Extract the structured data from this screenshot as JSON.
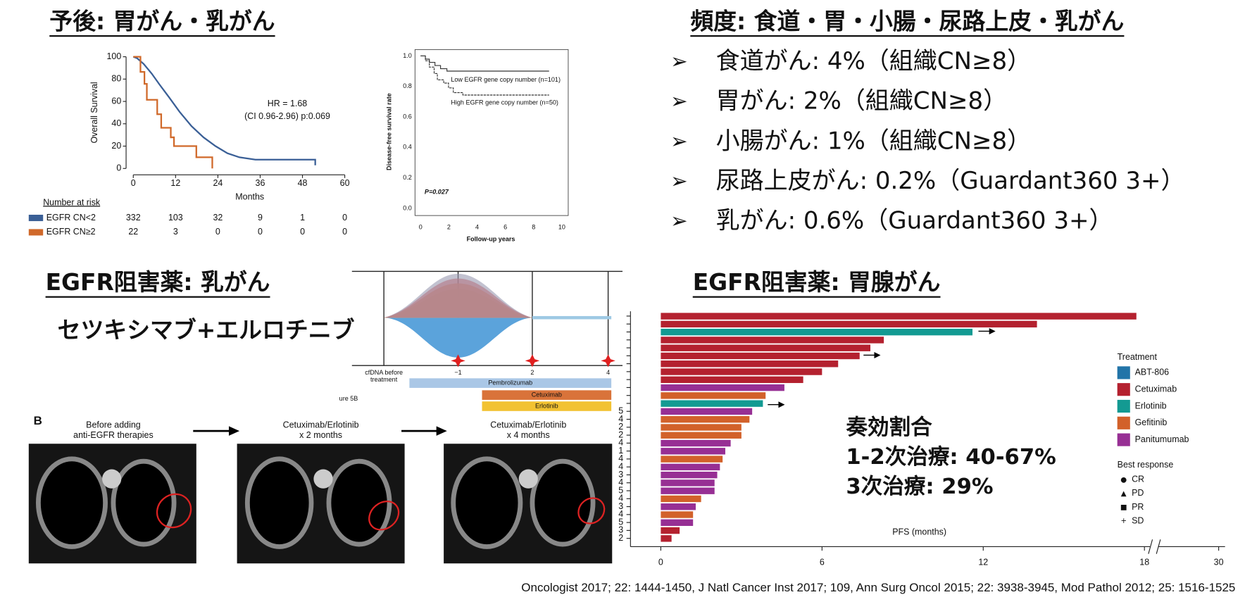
{
  "prognosis": {
    "title": "予後: 胃がん・乳がん",
    "km1": {
      "ylabel": "Overall Survival",
      "xlabel": "Months",
      "yticks": [
        0,
        20,
        40,
        60,
        80,
        100
      ],
      "xticks": [
        0,
        12,
        24,
        36,
        48,
        60
      ],
      "hr": "HR = 1.68",
      "ci": "(CI 0.96-2.96) p:0.069",
      "risk_title": "Number at risk",
      "risk_rows": [
        {
          "label": "EGFR CN<2",
          "color": "#3a5f96",
          "counts": [
            332,
            103,
            32,
            9,
            1,
            0
          ]
        },
        {
          "label": "EGFR CN≥2",
          "color": "#d0692a",
          "counts": [
            22,
            3,
            0,
            0,
            0,
            0
          ]
        }
      ]
    },
    "km2": {
      "ylabel": "Disease-free survival rate",
      "xlabel": "Follow-up years",
      "yticks": [
        "0.0",
        "0.2",
        "0.4",
        "0.6",
        "0.8",
        "1.0"
      ],
      "xticks": [
        0,
        2,
        4,
        6,
        8,
        10
      ],
      "low": "Low EGFR gene copy number (n=101)",
      "high": "High EGFR gene copy number (n=50)",
      "p": "P=0.027"
    }
  },
  "frequency": {
    "title": "頻度: 食道・胃・小腸・尿路上皮・乳がん",
    "items": [
      "食道がん: 4%（組織CN≥8）",
      "胃がん: 2%（組織CN≥8）",
      "小腸がん: 1%（組織CN≥8）",
      "尿路上皮がん: 0.2%（Guardant360 3+）",
      "乳がん: 0.6%（Guardant360 3+）"
    ]
  },
  "breast": {
    "title": "EGFR阻害薬: 乳がん",
    "regimen": "セツキシマブ+エルロチニブ",
    "timeline": {
      "start": [
        "cfDNA before",
        "treatment"
      ],
      "points": [
        "−1",
        "2",
        "4"
      ],
      "drugs": [
        "Pembrolizumab",
        "Cetuximab",
        "Erlotinib"
      ],
      "fig": "ure 5B"
    },
    "panel": "B",
    "images": [
      [
        "Before adding",
        "anti-EGFR therapies"
      ],
      [
        "Cetuximab/Erlotinib",
        "x 2 months"
      ],
      [
        "Cetuximab/Erlotinib",
        "x 4 months"
      ]
    ]
  },
  "gastric": {
    "title": "EGFR阻害薬: 胃腺がん",
    "response": [
      "奏効割合",
      "1-2次治療: 40-67%",
      "3次治療: 29%"
    ],
    "waterfall": {
      "xlabel": "PFS (months)",
      "xticks": [
        0,
        6,
        12,
        18,
        30
      ],
      "legend_title": "Treatment",
      "treatments": [
        {
          "name": "ABT-806",
          "color": "#2274a8"
        },
        {
          "name": "Cetuximab",
          "color": "#b4212f"
        },
        {
          "name": "Erlotinib",
          "color": "#139a92"
        },
        {
          "name": "Gefitinib",
          "color": "#d2612a"
        },
        {
          "name": "Panitumumab",
          "color": "#972f94"
        }
      ],
      "response_title": "Best response",
      "responses": [
        "CR",
        "PD",
        "PR",
        "SD"
      ],
      "bars": [
        {
          "value": 17.7,
          "treatment": "Cetuximab"
        },
        {
          "value": 14.0,
          "treatment": "Cetuximab"
        },
        {
          "value": 11.6,
          "treatment": "Erlotinib"
        },
        {
          "value": 8.3,
          "treatment": "Cetuximab"
        },
        {
          "value": 7.8,
          "treatment": "Cetuximab"
        },
        {
          "value": 7.4,
          "treatment": "Cetuximab"
        },
        {
          "value": 6.6,
          "treatment": "Cetuximab"
        },
        {
          "value": 6.0,
          "treatment": "Cetuximab"
        },
        {
          "value": 5.3,
          "treatment": "Cetuximab"
        },
        {
          "value": 4.6,
          "treatment": "Panitumumab"
        },
        {
          "value": 3.9,
          "treatment": "Gefitinib"
        },
        {
          "value": 3.8,
          "treatment": "Erlotinib"
        },
        {
          "value": 3.4,
          "treatment": "Panitumumab"
        },
        {
          "value": 3.3,
          "treatment": "Gefitinib"
        },
        {
          "value": 3.0,
          "treatment": "Gefitinib"
        },
        {
          "value": 3.0,
          "treatment": "Gefitinib"
        },
        {
          "value": 2.6,
          "treatment": "Panitumumab"
        },
        {
          "value": 2.4,
          "treatment": "Panitumumab"
        },
        {
          "value": 2.3,
          "treatment": "Gefitinib"
        },
        {
          "value": 2.2,
          "treatment": "Panitumumab"
        },
        {
          "value": 2.1,
          "treatment": "Panitumumab"
        },
        {
          "value": 2.0,
          "treatment": "Panitumumab"
        },
        {
          "value": 2.0,
          "treatment": "Panitumumab"
        },
        {
          "value": 1.5,
          "treatment": "Gefitinib"
        },
        {
          "value": 1.3,
          "treatment": "Panitumumab"
        },
        {
          "value": 1.2,
          "treatment": "Gefitinib"
        },
        {
          "value": 1.2,
          "treatment": "Panitumumab"
        },
        {
          "value": 0.7,
          "treatment": "Cetuximab"
        },
        {
          "value": 0.4,
          "treatment": "Cetuximab"
        }
      ],
      "line_labels": [
        "5",
        "4",
        "2",
        "2",
        "4",
        "1",
        "4",
        "4",
        "3",
        "4",
        "5",
        "4",
        "3",
        "4",
        "5",
        "3",
        "2"
      ]
    }
  },
  "citation": "Oncologist 2017; 22: 1444-1450, J Natl Cancer Inst 2017; 109, Ann Surg Oncol 2015; 22: 3938-3945, Mod Pathol 2012; 25: 1516-1525"
}
